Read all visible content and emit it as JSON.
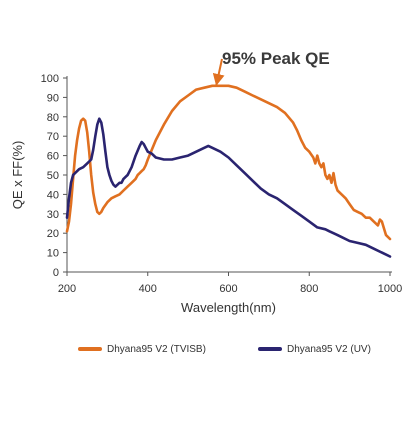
{
  "chart_data": {
    "type": "line",
    "xlabel": "Wavelength(nm)",
    "ylabel": "QE x FF(%)",
    "xlim": [
      200,
      1000
    ],
    "ylim": [
      0,
      100
    ],
    "xticks": [
      200,
      400,
      600,
      800,
      1000
    ],
    "yticks": [
      0,
      10,
      20,
      30,
      40,
      50,
      60,
      70,
      80,
      90,
      100
    ],
    "grid": false,
    "legend_position": "bottom",
    "annotation": {
      "text": "95% Peak QE",
      "target": {
        "x": 575,
        "y": 96
      }
    },
    "series": [
      {
        "name": "Dhyana95 V2  (TVISB)",
        "color": "#e07020",
        "x": [
          200,
          205,
          210,
          215,
          220,
          225,
          230,
          235,
          240,
          245,
          250,
          255,
          260,
          265,
          270,
          275,
          280,
          285,
          290,
          300,
          310,
          320,
          330,
          340,
          350,
          360,
          370,
          375,
          380,
          385,
          390,
          395,
          400,
          410,
          420,
          440,
          460,
          480,
          500,
          520,
          540,
          560,
          580,
          600,
          620,
          640,
          660,
          680,
          700,
          720,
          740,
          760,
          770,
          780,
          790,
          800,
          810,
          815,
          820,
          825,
          830,
          835,
          840,
          845,
          850,
          855,
          860,
          865,
          870,
          880,
          890,
          900,
          910,
          920,
          930,
          940,
          950,
          960,
          970,
          975,
          980,
          990,
          1000
        ],
        "values": [
          21,
          26,
          35,
          48,
          60,
          68,
          74,
          78,
          79,
          78,
          72,
          62,
          50,
          41,
          35,
          31,
          30,
          31,
          33,
          36,
          38,
          39,
          40,
          42,
          44,
          46,
          48,
          50,
          51,
          52,
          53,
          55,
          58,
          63,
          68,
          76,
          83,
          88,
          91,
          94,
          95,
          96,
          96,
          96,
          95,
          93,
          91,
          89,
          87,
          85,
          82,
          77,
          73,
          68,
          64,
          62,
          59,
          56,
          60,
          56,
          54,
          56,
          50,
          48,
          50,
          46,
          51,
          45,
          42,
          40,
          38,
          35,
          32,
          31,
          30,
          28,
          28,
          26,
          24,
          27,
          26,
          19,
          17
        ]
      },
      {
        "name": "Dhyana95 V2  (UV)",
        "color": "#2a2470",
        "x": [
          200,
          205,
          210,
          215,
          220,
          230,
          240,
          250,
          260,
          265,
          270,
          275,
          280,
          285,
          290,
          295,
          300,
          305,
          310,
          315,
          320,
          325,
          330,
          335,
          340,
          350,
          360,
          370,
          380,
          385,
          390,
          395,
          400,
          410,
          420,
          440,
          460,
          480,
          500,
          520,
          540,
          550,
          560,
          580,
          600,
          620,
          640,
          660,
          680,
          700,
          720,
          740,
          760,
          780,
          800,
          820,
          840,
          850,
          860,
          870,
          880,
          900,
          920,
          940,
          960,
          980,
          1000
        ],
        "values": [
          28,
          38,
          46,
          50,
          51,
          53,
          54,
          56,
          58,
          63,
          70,
          76,
          79,
          77,
          71,
          62,
          54,
          50,
          47,
          45,
          44,
          45,
          46,
          46,
          48,
          50,
          54,
          60,
          65,
          67,
          66,
          64,
          62,
          61,
          59,
          58,
          58,
          59,
          60,
          62,
          64,
          65,
          64,
          62,
          59,
          55,
          51,
          47,
          43,
          40,
          38,
          35,
          32,
          29,
          26,
          23,
          22,
          21,
          20,
          19,
          18,
          16,
          15,
          14,
          12,
          10,
          8
        ]
      }
    ]
  }
}
